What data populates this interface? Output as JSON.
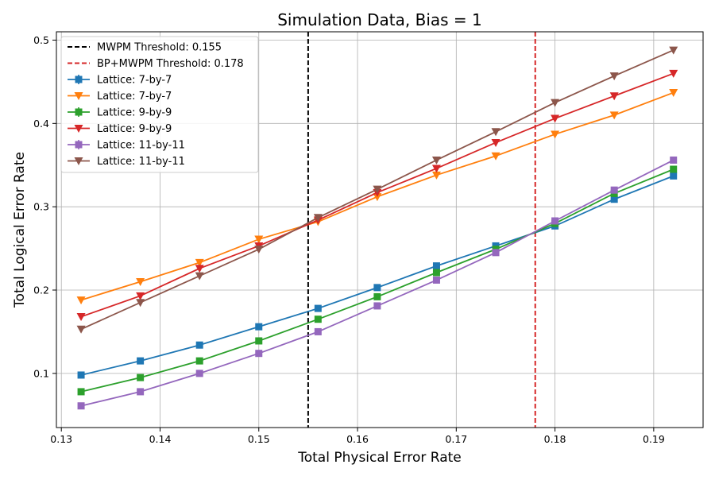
{
  "chart_data": {
    "type": "line",
    "title": "Simulation Data, Bias = 1",
    "xlabel": "Total Physical Error Rate",
    "ylabel": "Total Logical Error Rate",
    "xlim": [
      0.1295,
      0.195
    ],
    "ylim": [
      0.035,
      0.51
    ],
    "xticks": [
      0.13,
      0.14,
      0.15,
      0.16,
      0.17,
      0.18,
      0.19
    ],
    "xtick_labels": [
      "0.13",
      "0.14",
      "0.15",
      "0.16",
      "0.17",
      "0.18",
      "0.19"
    ],
    "yticks": [
      0.1,
      0.2,
      0.3,
      0.4,
      0.5
    ],
    "ytick_labels": [
      "0.1",
      "0.2",
      "0.3",
      "0.4",
      "0.5"
    ],
    "grid": true,
    "legend_position": "upper-left",
    "x": [
      0.132,
      0.138,
      0.144,
      0.15,
      0.156,
      0.162,
      0.168,
      0.174,
      0.18,
      0.186,
      0.192
    ],
    "thresholds": [
      {
        "name": "MWPM Threshold: 0.155",
        "x": 0.155,
        "color": "#000000"
      },
      {
        "name": "BP+MWPM Threshold: 0.178",
        "x": 0.178,
        "color": "#d62728"
      }
    ],
    "series": [
      {
        "name": "Lattice: 7-by-7",
        "color": "#1f77b4",
        "marker": "square",
        "values": [
          0.098,
          0.115,
          0.134,
          0.156,
          0.178,
          0.203,
          0.229,
          0.253,
          0.277,
          0.309,
          0.337
        ]
      },
      {
        "name": "Lattice: 7-by-7",
        "color": "#ff7f0e",
        "marker": "triangle-down",
        "values": [
          0.188,
          0.21,
          0.233,
          0.261,
          0.282,
          0.312,
          0.338,
          0.361,
          0.387,
          0.41,
          0.437
        ]
      },
      {
        "name": "Lattice: 9-by-9",
        "color": "#2ca02c",
        "marker": "square",
        "values": [
          0.078,
          0.095,
          0.115,
          0.139,
          0.165,
          0.192,
          0.221,
          0.249,
          0.28,
          0.316,
          0.345
        ]
      },
      {
        "name": "Lattice: 9-by-9",
        "color": "#d62728",
        "marker": "triangle-down",
        "values": [
          0.168,
          0.193,
          0.226,
          0.253,
          0.284,
          0.317,
          0.346,
          0.377,
          0.406,
          0.433,
          0.46
        ]
      },
      {
        "name": "Lattice: 11-by-11",
        "color": "#9467bd",
        "marker": "square",
        "values": [
          0.061,
          0.078,
          0.1,
          0.124,
          0.15,
          0.181,
          0.212,
          0.245,
          0.283,
          0.32,
          0.356
        ]
      },
      {
        "name": "Lattice: 11-by-11",
        "color": "#8c564b",
        "marker": "triangle-down",
        "values": [
          0.153,
          0.185,
          0.217,
          0.249,
          0.287,
          0.321,
          0.356,
          0.39,
          0.425,
          0.457,
          0.488
        ]
      }
    ]
  }
}
